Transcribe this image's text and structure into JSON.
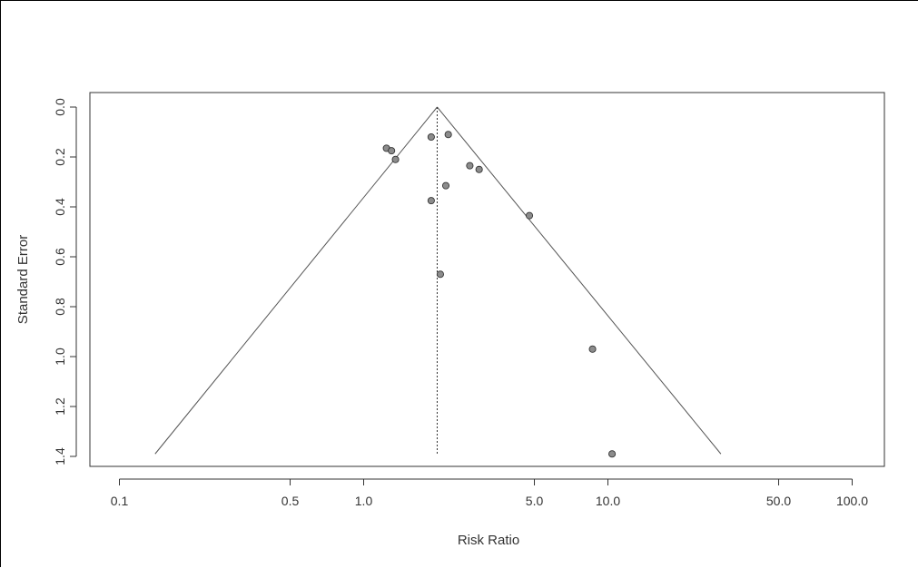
{
  "chart_data": {
    "type": "scatter",
    "subtype": "funnel-plot",
    "title": "",
    "xlabel": "Risk Ratio",
    "ylabel": "Standard Error",
    "x_scale": "log",
    "y_reversed": true,
    "xlim": [
      0.08,
      150
    ],
    "ylim": [
      0,
      1.45
    ],
    "x_ticks": [
      0.1,
      0.5,
      1.0,
      5.0,
      10.0,
      50.0,
      100.0
    ],
    "x_tick_labels": [
      "0.1",
      "0.5",
      "1.0",
      "5.0",
      "10.0",
      "50.0",
      "100.0"
    ],
    "y_ticks": [
      0,
      0.2,
      0.4,
      0.6,
      0.8,
      1.0,
      1.2,
      1.4
    ],
    "y_tick_labels": [
      "0.0",
      "0.2",
      "0.4",
      "0.6",
      "0.8",
      "1.0",
      "1.2",
      "1.4"
    ],
    "pooled_estimate": 2.0,
    "funnel": {
      "se_max": 1.39,
      "lower_rr": 0.14,
      "upper_rr": 29.0
    },
    "points": [
      {
        "x": 1.24,
        "y": 0.165
      },
      {
        "x": 1.3,
        "y": 0.175
      },
      {
        "x": 1.35,
        "y": 0.21
      },
      {
        "x": 1.89,
        "y": 0.12
      },
      {
        "x": 2.22,
        "y": 0.11
      },
      {
        "x": 2.72,
        "y": 0.235
      },
      {
        "x": 2.97,
        "y": 0.25
      },
      {
        "x": 2.17,
        "y": 0.315
      },
      {
        "x": 1.89,
        "y": 0.375
      },
      {
        "x": 4.77,
        "y": 0.435
      },
      {
        "x": 2.06,
        "y": 0.67
      },
      {
        "x": 8.65,
        "y": 0.97
      },
      {
        "x": 10.4,
        "y": 1.39
      }
    ],
    "grid": false,
    "legend": "none",
    "colors": {
      "point_fill": "#8c8c8c",
      "point_stroke": "#333333",
      "line": "#555555"
    }
  }
}
